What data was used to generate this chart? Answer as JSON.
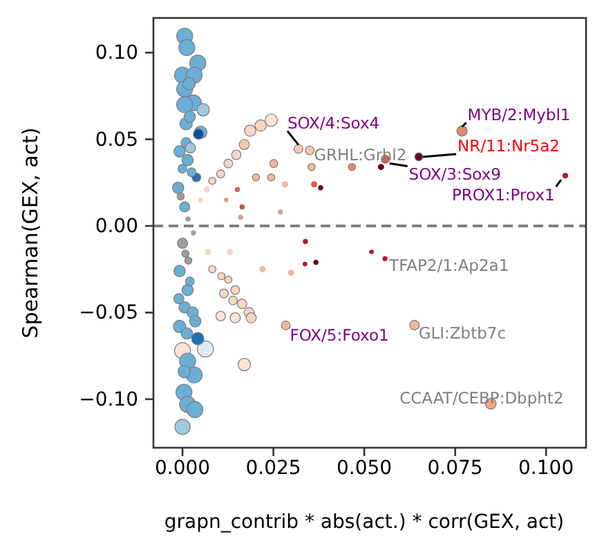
{
  "chart_data": {
    "type": "bubble",
    "xlabel": "grapn_contrib * abs(act.) * corr(GEX, act)",
    "ylabel": "Spearman(GEX, act)",
    "xlim": [
      -0.008,
      0.111
    ],
    "xticks": [
      {
        "value": 0,
        "label": "0.000"
      },
      {
        "value": 0.025,
        "label": "0.025"
      },
      {
        "value": 0.05,
        "label": "0.050"
      },
      {
        "value": 0.075,
        "label": "0.075"
      },
      {
        "value": 0.1,
        "label": "0.100"
      }
    ],
    "ylim": [
      -0.128,
      0.12
    ],
    "yticks": [
      {
        "value": 0.1,
        "label": "0.10"
      },
      {
        "value": 0.05,
        "label": "0.05"
      },
      {
        "value": 0,
        "label": "0.00"
      },
      {
        "value": -0.05,
        "label": "−0.05"
      },
      {
        "value": -0.1,
        "label": "−0.10"
      }
    ],
    "grid": false,
    "ref_lines": [
      {
        "axis": "y",
        "value": 0,
        "color": "#808080",
        "line_style": "dashed"
      }
    ],
    "series": [
      {
        "x": [
          0.0006,
          0.0012,
          0.0042,
          0.0,
          0.0032,
          0.0006,
          0.003,
          0.0006,
          0.0057,
          0.005,
          0.001,
          -0.0008,
          0.0014,
          -0.0012,
          0.0006,
          0.0,
          -0.0008,
          0.0014,
          0.0006,
          -0.0008,
          0.0063,
          0.0,
          0.0014,
          0.0032,
          0.0004,
          0.0014,
          0.0034,
          0.0,
          0.0044,
          0.0038,
          0.0042,
          0.002,
          0.001,
          0.0025,
          -0.0005,
          0.0015,
          0.003,
          0.0008,
          0.002,
          -0.001,
          0.0028,
          0.0012,
          0.0018,
          0.0005,
          0.0022,
          0.0035,
          0.0,
          0.0016
        ],
        "values": [
          0.1095,
          0.1029,
          0.094,
          0.087,
          0.087,
          0.079,
          0.071,
          0.07,
          0.067,
          0.054,
          0.059,
          0.043,
          0.038,
          0.022,
          0.011,
          -0.01,
          -0.026,
          -0.037,
          -0.047,
          -0.058,
          -0.071,
          -0.072,
          -0.078,
          -0.086,
          -0.096,
          -0.103,
          -0.106,
          -0.116,
          0.053,
          0.028,
          -0.065,
          0.063,
          0.048,
          0.031,
          0.017,
          0.004,
          -0.004,
          -0.016,
          -0.032,
          -0.042,
          -0.05,
          -0.062,
          0.082,
          -0.084,
          0.045,
          -0.055,
          0.033,
          -0.02
        ],
        "sizes": [
          1,
          1,
          1,
          1,
          1,
          1,
          1,
          1,
          0.6,
          0.6,
          0.6,
          0.5,
          0.5,
          0.5,
          0.4,
          0.4,
          0.5,
          0.5,
          0.5,
          0.6,
          1,
          1,
          1,
          1,
          1,
          1,
          1,
          0.9,
          0.4,
          0.3,
          0.6,
          0.5,
          0.4,
          0.3,
          0.2,
          0.1,
          0.1,
          0.2,
          0.3,
          0.4,
          0.5,
          0.5,
          0.6,
          0.6,
          0.4,
          0.5,
          0.3,
          0.2
        ],
        "colors": [
          "#6baed6",
          "#6baed6",
          "#6baed6",
          "#6baed6",
          "#6baed6",
          "#6baed6",
          "#6baed6",
          "#6baed6",
          "#9ecae1",
          "#6baed6",
          "#6baed6",
          "#6baed6",
          "#6baed6",
          "#6baed6",
          "#6baed6",
          "#9e9ea0",
          "#6baed6",
          "#6baed6",
          "#6baed6",
          "#6baed6",
          "#deebf7",
          "#fbe3d6",
          "#6baed6",
          "#6baed6",
          "#6baed6",
          "#6baed6",
          "#6baed6",
          "#9ecae1",
          "#08519c",
          "#2171b5",
          "#2171b5",
          "#6baed6",
          "#6baed6",
          "#6baed6",
          "#9e9ea0",
          "#9e9ea0",
          "#9e9ea0",
          "#9e9ea0",
          "#6baed6",
          "#6baed6",
          "#6baed6",
          "#6baed6",
          "#6baed6",
          "#6baed6",
          "#9ecae1",
          "#6baed6",
          "#6baed6",
          "#9e9ea0"
        ]
      },
      {
        "x": [
          0.0244,
          0.0215,
          0.0186,
          0.017,
          0.0148,
          0.0126,
          0.0105,
          0.0082,
          0.0067,
          0.005,
          0.0251,
          0.0202,
          0.0244,
          0.0282,
          0.0355,
          0.0362,
          0.038,
          0.0466,
          0.0546,
          0.0151,
          0.012,
          0.0164,
          0.016,
          0.0269,
          0.0338,
          0.0337,
          0.0367,
          0.0299,
          0.022,
          0.052,
          0.013,
          0.007,
          0.0082,
          0.0107,
          0.0126,
          0.0145,
          0.0114,
          0.0139,
          0.0164,
          0.0183,
          0.0145,
          0.0189,
          0.0105,
          0.017,
          0.0319,
          0.035,
          0.0769,
          0.065,
          0.0558,
          0.1053,
          0.0557,
          0.0284,
          0.0638,
          0.0848
        ],
        "values": [
          0.061,
          0.058,
          0.055,
          0.047,
          0.041,
          0.036,
          0.03,
          0.026,
          0.021,
          0.015,
          0.036,
          0.028,
          0.028,
          0.024,
          0.034,
          0.024,
          0.022,
          0.034,
          0.034,
          0.021,
          0.015,
          0.011,
          0.005,
          0.008,
          -0.009,
          -0.022,
          -0.021,
          -0.027,
          -0.025,
          -0.015,
          -0.015,
          -0.015,
          -0.025,
          -0.029,
          -0.031,
          -0.037,
          -0.039,
          -0.043,
          -0.045,
          -0.05,
          -0.053,
          -0.053,
          -0.052,
          -0.08,
          0.0444,
          0.0436,
          0.0548,
          0.0399,
          0.0385,
          0.029,
          -0.0189,
          -0.0574,
          -0.0572,
          -0.1026
        ],
        "sizes": [
          0.6,
          0.5,
          0.5,
          0.4,
          0.35,
          0.3,
          0.25,
          0.2,
          0.15,
          0.1,
          0.25,
          0.2,
          0.2,
          0.15,
          0.2,
          0.15,
          0.1,
          0.2,
          0.15,
          0.1,
          0.08,
          0.1,
          0.1,
          0.1,
          0.1,
          0.08,
          0.1,
          0.15,
          0.15,
          0.08,
          0.15,
          0.15,
          0.2,
          0.2,
          0.2,
          0.3,
          0.3,
          0.3,
          0.35,
          0.4,
          0.4,
          0.4,
          0.35,
          0.6,
          0.3,
          0.3,
          0.4,
          0.25,
          0.25,
          0.12,
          0.1,
          0.3,
          0.35,
          0.45
        ],
        "colors": [
          "#fbe3d6",
          "#f9d5c2",
          "#f9d5c2",
          "#f6c7ac",
          "#f9d5c2",
          "#f9d5c2",
          "#f9d5c2",
          "#f9d5c2",
          "#f9d5c2",
          "#f9d5c2",
          "#f4b698",
          "#f4b698",
          "#f4b698",
          "#f4b698",
          "#f4b698",
          "#d6604d",
          "#67001f",
          "#e08a70",
          "#67001f",
          "#d6604d",
          "#d6a08c",
          "#c0583f",
          "#d6a08c",
          "#d6a08c",
          "#b2182b",
          "#b2182b",
          "#67001f",
          "#f4b698",
          "#f4b698",
          "#b2182b",
          "#f9d5c2",
          "#f9d5c2",
          "#f9d5c2",
          "#f9d5c2",
          "#f9d5c2",
          "#f9d5c2",
          "#f9d5c2",
          "#f9d5c2",
          "#f9d5c2",
          "#f9d5c2",
          "#fbe3d6",
          "#f9d5c2",
          "#fbe3d6",
          "#fbe3d6",
          "#f6c7ac",
          "#f6c7ac",
          "#e08a70",
          "#67001f",
          "#d6604d",
          "#b2182b",
          "#b2182b",
          "#f4b698",
          "#f4b698",
          "#f4a582"
        ]
      }
    ],
    "annotations": [
      {
        "text": "SOX/4:Sox4",
        "x": 0.0319,
        "y": 0.0444
      },
      {
        "text": "GRHL:Grhl2",
        "x": 0.035,
        "y": 0.0436
      },
      {
        "text": "MYB/2:Mybl1",
        "x": 0.0769,
        "y": 0.0548
      },
      {
        "text": "NR/11:Nr5a2",
        "x": 0.065,
        "y": 0.0399
      },
      {
        "text": "SOX/3:Sox9",
        "x": 0.0558,
        "y": 0.0385
      },
      {
        "text": "PROX1:Prox1",
        "x": 0.1053,
        "y": 0.029
      },
      {
        "text": "TFAP2/1:Ap2a1",
        "x": 0.0557,
        "y": -0.0189
      },
      {
        "text": "FOX/5:Foxo1",
        "x": 0.0284,
        "y": -0.0574
      },
      {
        "text": "GLI:Zbtb7c",
        "x": 0.0638,
        "y": -0.0572
      },
      {
        "text": "CCAAT/CEBP:Dbpht2",
        "x": 0.0848,
        "y": -0.1026
      }
    ]
  }
}
